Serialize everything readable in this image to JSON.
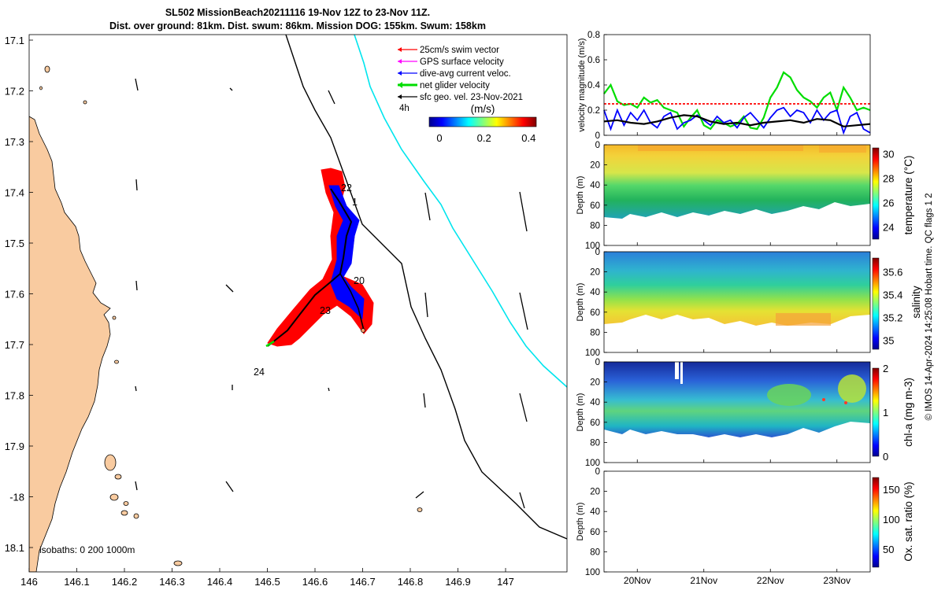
{
  "title": {
    "line1": "SL502 MissionBeach20211116 19-Nov 12Z to 23-Nov 11Z.",
    "line2": "Dist. over ground: 81km. Dist. swum: 86km. Mission DOG: 155km. Swum: 158km"
  },
  "map": {
    "lon_ticks": [
      "146",
      "146.1",
      "146.2",
      "146.3",
      "146.4",
      "146.5",
      "146.6",
      "146.7",
      "146.8",
      "146.9",
      "147"
    ],
    "lat_ticks": [
      "17.1",
      "17.2",
      "17.3",
      "17.4",
      "17.5",
      "17.6",
      "17.7",
      "17.8",
      "17.9",
      "-18",
      "18.1"
    ],
    "legend": [
      {
        "label": "25cm/s swim vector",
        "color": "#ff0000"
      },
      {
        "label": "GPS surface velocity",
        "color": "#ff00ff"
      },
      {
        "label": "dive-avg current veloc.",
        "color": "#0000ff"
      },
      {
        "label": "net glider velocity",
        "color": "#00dd00"
      },
      {
        "label": "sfc geo. vel. 23-Nov-2021",
        "color": "#000000"
      }
    ],
    "legend_note": "4h",
    "colorbar_unit": "(m/s)",
    "colorbar_ticks": [
      "0",
      "0.2",
      "0.4"
    ],
    "day_labels": [
      "22",
      "1",
      "20",
      "23",
      "24"
    ],
    "isobaths_label": "isobaths: 0   200  1000m",
    "colors": {
      "land": "#f9cba0",
      "isobath_200": "#000000",
      "isobath_1000": "#00e5ee",
      "track": "#000000"
    }
  },
  "chart_data": [
    {
      "type": "line",
      "title": "",
      "ylabel": "velocity magnitude (m/s)",
      "ylim": [
        0,
        0.8
      ],
      "yticks": [
        "0",
        "0.2",
        "0.4",
        "0.6",
        "0.8"
      ],
      "x_range_days": [
        19.5,
        23.5
      ],
      "series": [
        {
          "name": "net glider velocity",
          "color": "#00dd00",
          "x": [
            19.5,
            19.6,
            19.7,
            19.8,
            19.9,
            20.0,
            20.1,
            20.2,
            20.3,
            20.4,
            20.5,
            20.6,
            20.7,
            20.8,
            20.9,
            21.0,
            21.1,
            21.2,
            21.3,
            21.4,
            21.5,
            21.6,
            21.7,
            21.8,
            21.9,
            22.0,
            22.1,
            22.2,
            22.3,
            22.4,
            22.5,
            22.6,
            22.7,
            22.8,
            22.9,
            23.0,
            23.1,
            23.2,
            23.3,
            23.4,
            23.5
          ],
          "values": [
            0.33,
            0.4,
            0.27,
            0.24,
            0.25,
            0.22,
            0.3,
            0.26,
            0.28,
            0.22,
            0.2,
            0.18,
            0.07,
            0.14,
            0.2,
            0.08,
            0.05,
            0.12,
            0.1,
            0.07,
            0.09,
            0.15,
            0.06,
            0.05,
            0.14,
            0.3,
            0.38,
            0.5,
            0.46,
            0.36,
            0.3,
            0.27,
            0.22,
            0.3,
            0.34,
            0.2,
            0.38,
            0.3,
            0.2,
            0.22,
            0.2
          ]
        },
        {
          "name": "dive-avg current veloc.",
          "color": "#0000ff",
          "x": [
            19.5,
            19.6,
            19.7,
            19.8,
            19.9,
            20.0,
            20.1,
            20.2,
            20.3,
            20.4,
            20.5,
            20.6,
            20.7,
            20.8,
            20.9,
            21.0,
            21.1,
            21.2,
            21.3,
            21.4,
            21.5,
            21.6,
            21.7,
            21.8,
            21.9,
            22.0,
            22.1,
            22.2,
            22.3,
            22.4,
            22.5,
            22.6,
            22.7,
            22.8,
            22.9,
            23.0,
            23.1,
            23.2,
            23.3,
            23.4,
            23.5
          ],
          "values": [
            0.2,
            0.05,
            0.2,
            0.08,
            0.18,
            0.12,
            0.2,
            0.1,
            0.06,
            0.15,
            0.18,
            0.05,
            0.1,
            0.12,
            0.16,
            0.12,
            0.08,
            0.15,
            0.1,
            0.12,
            0.06,
            0.14,
            0.18,
            0.12,
            0.06,
            0.14,
            0.2,
            0.22,
            0.15,
            0.2,
            0.18,
            0.1,
            0.2,
            0.12,
            0.18,
            0.2,
            0.02,
            0.15,
            0.18,
            0.05,
            0.02
          ]
        },
        {
          "name": "mean swim",
          "color": "#ff0000",
          "x": [
            19.5,
            23.5
          ],
          "values": [
            0.25,
            0.25
          ]
        },
        {
          "name": "sfc velocity",
          "color": "#000000",
          "x": [
            19.5,
            19.7,
            19.9,
            20.1,
            20.3,
            20.5,
            20.7,
            20.9,
            21.1,
            21.3,
            21.5,
            21.7,
            21.9,
            22.1,
            22.3,
            22.5,
            22.7,
            22.9,
            23.1,
            23.3,
            23.5
          ],
          "values": [
            0.11,
            0.12,
            0.1,
            0.09,
            0.11,
            0.14,
            0.16,
            0.15,
            0.11,
            0.09,
            0.1,
            0.08,
            0.1,
            0.11,
            0.12,
            0.1,
            0.13,
            0.12,
            0.07,
            0.08,
            0.09
          ]
        }
      ]
    },
    {
      "type": "heatmap",
      "ylabel": "Depth (m)",
      "yticks": [
        "0",
        "20",
        "40",
        "60",
        "80",
        "100"
      ],
      "colorbar_label": "temperature (°C)",
      "colorbar_ticks": [
        "24",
        "26",
        "28",
        "30"
      ],
      "clim": [
        23,
        30.5
      ]
    },
    {
      "type": "heatmap",
      "ylabel": "Depth (m)",
      "yticks": [
        "0",
        "20",
        "40",
        "60",
        "80",
        "100"
      ],
      "colorbar_label": "salinity",
      "colorbar_ticks": [
        "35",
        "35.2",
        "35.4",
        "35.6"
      ],
      "clim": [
        34.92,
        35.72
      ]
    },
    {
      "type": "heatmap",
      "ylabel": "Depth (m)",
      "yticks": [
        "0",
        "20",
        "40",
        "60",
        "80",
        "100"
      ],
      "colorbar_label": "chl-a (mg m-3)",
      "colorbar_ticks": [
        "0",
        "1",
        "2"
      ],
      "clim": [
        0,
        2
      ]
    },
    {
      "type": "heatmap",
      "ylabel": "Depth (m)",
      "yticks": [
        "0",
        "20",
        "40",
        "60",
        "80",
        "100"
      ],
      "colorbar_label": "Ox. sat. ratio (%)",
      "colorbar_ticks": [
        "50",
        "100",
        "150"
      ],
      "clim": [
        20,
        170
      ]
    }
  ],
  "time_axis_labels": [
    "20Nov",
    "21Nov",
    "22Nov",
    "23Nov"
  ],
  "side_note": "© IMOS 14-Apr-2024 14:25:08 Hobart time. QC flags 1  2"
}
